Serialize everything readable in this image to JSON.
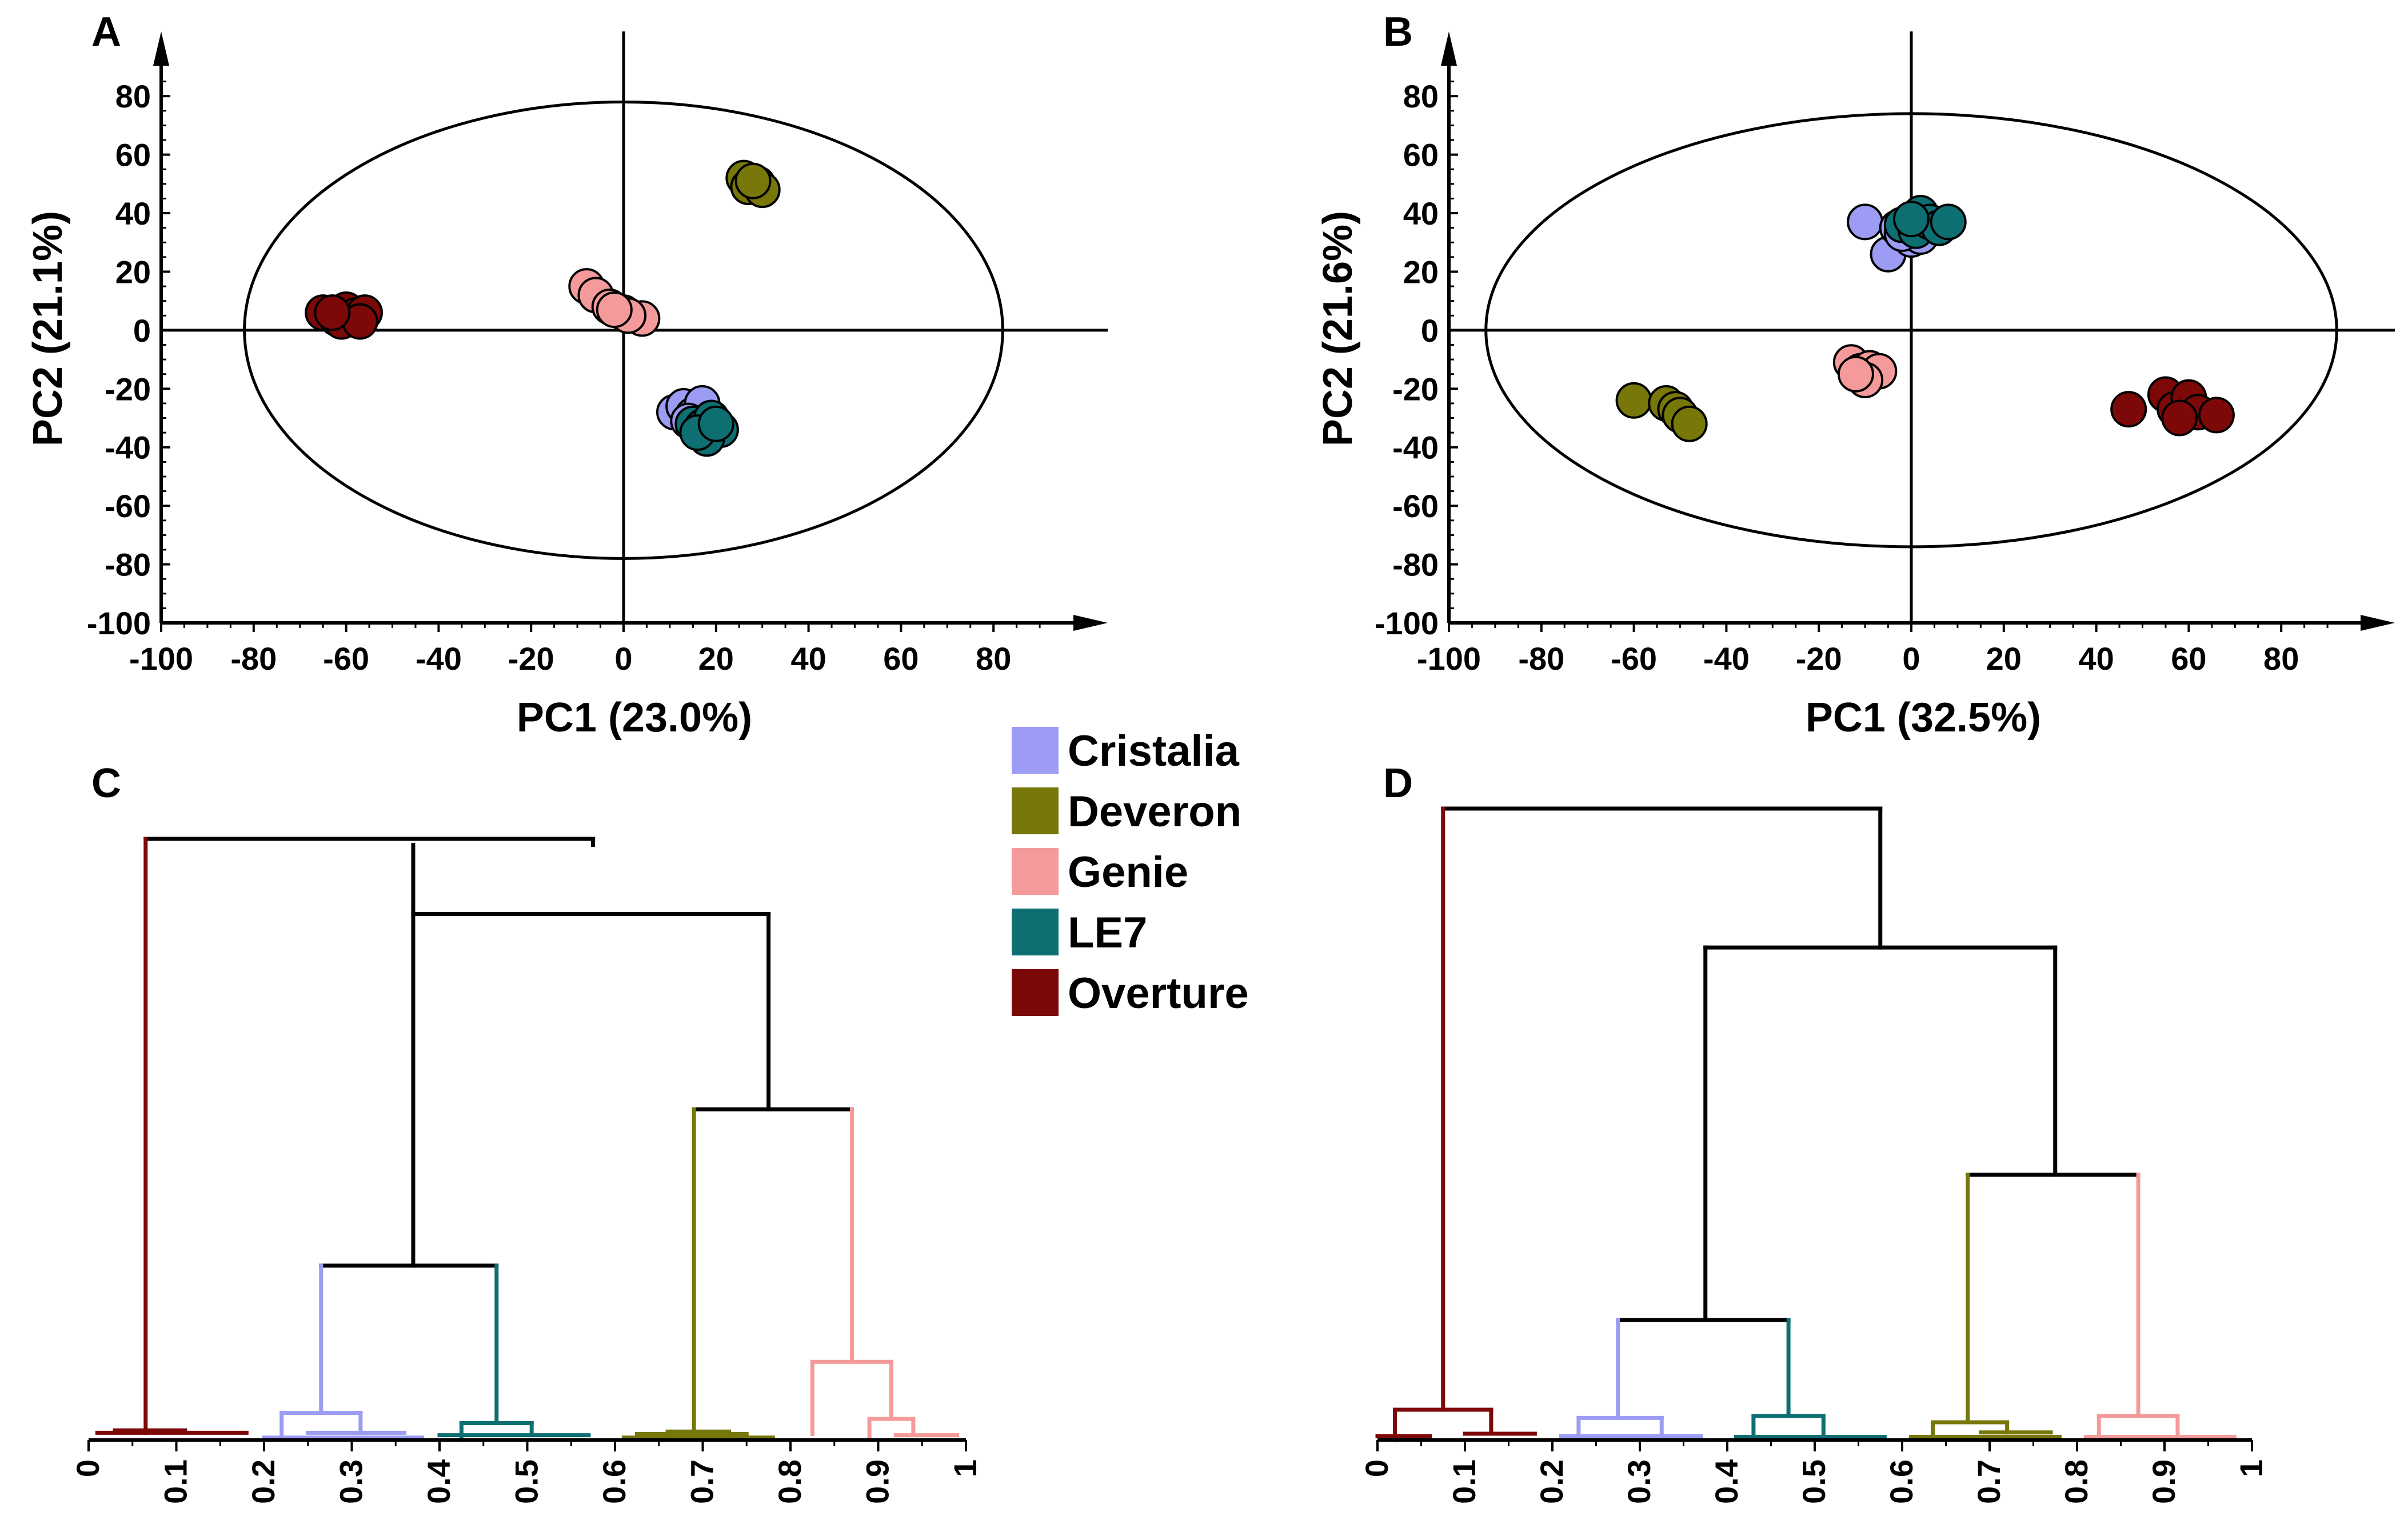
{
  "colors": {
    "Cristalia": "#9c9cf5",
    "Deveron": "#77770a",
    "Genie": "#f59a9a",
    "LE7": "#0e6f73",
    "Overture": "#7d0808",
    "black": "#000000"
  },
  "legend": {
    "items": [
      {
        "label": "Cristalia",
        "color": "#9c9cf5"
      },
      {
        "label": "Deveron",
        "color": "#77770a"
      },
      {
        "label": "Genie",
        "color": "#f59a9a"
      },
      {
        "label": "LE7",
        "color": "#0e6f73"
      },
      {
        "label": "Overture",
        "color": "#7d0808"
      }
    ]
  },
  "chart_data": [
    {
      "panel": "A",
      "type": "scatter",
      "xlabel": "PC1 (23.0%)",
      "ylabel": "PC2 (21.1%)",
      "xlim": [
        -100,
        100
      ],
      "ylim": [
        -100,
        90
      ],
      "xticks": [
        -100,
        -80,
        -60,
        -40,
        -20,
        0,
        20,
        40,
        60,
        80
      ],
      "yticks": [
        -100,
        -80,
        -60,
        -40,
        -20,
        0,
        20,
        40,
        60,
        80
      ],
      "ellipse": {
        "rx": 82,
        "ry": 78
      },
      "series": [
        {
          "name": "Overture",
          "points": [
            [
              -65,
              6
            ],
            [
              -62,
              4
            ],
            [
              -60,
              7
            ],
            [
              -58,
              5
            ],
            [
              -56,
              6
            ],
            [
              -61,
              3
            ],
            [
              -57,
              3
            ],
            [
              -63,
              6
            ]
          ]
        },
        {
          "name": "Genie",
          "points": [
            [
              -8,
              15
            ],
            [
              -6,
              12
            ],
            [
              -3,
              8
            ],
            [
              0,
              6
            ],
            [
              4,
              4
            ],
            [
              1,
              5
            ],
            [
              -2,
              7
            ]
          ]
        },
        {
          "name": "Deveron",
          "points": [
            [
              26,
              52
            ],
            [
              27,
              49
            ],
            [
              29,
              50
            ],
            [
              30,
              48
            ],
            [
              28,
              51
            ]
          ]
        },
        {
          "name": "Cristalia",
          "points": [
            [
              11,
              -28
            ],
            [
              13,
              -26
            ],
            [
              15,
              -29
            ],
            [
              17,
              -25
            ],
            [
              14,
              -31
            ]
          ]
        },
        {
          "name": "LE7",
          "points": [
            [
              15,
              -32
            ],
            [
              17,
              -33
            ],
            [
              19,
              -30
            ],
            [
              21,
              -34
            ],
            [
              18,
              -37
            ],
            [
              16,
              -35
            ],
            [
              20,
              -32
            ]
          ]
        }
      ]
    },
    {
      "panel": "B",
      "type": "scatter",
      "xlabel": "PC1 (32.5%)",
      "ylabel": "PC2 (21.6%)",
      "xlim": [
        -100,
        100
      ],
      "ylim": [
        -100,
        90
      ],
      "xticks": [
        -100,
        -80,
        -60,
        -40,
        -20,
        0,
        20,
        40,
        60,
        80
      ],
      "yticks": [
        -100,
        -80,
        -60,
        -40,
        -20,
        0,
        20,
        40,
        60,
        80
      ],
      "ellipse": {
        "rx": 92,
        "ry": 74
      },
      "series": [
        {
          "name": "Deveron",
          "points": [
            [
              -60,
              -24
            ],
            [
              -53,
              -25
            ],
            [
              -51,
              -27
            ],
            [
              -50,
              -29
            ],
            [
              -48,
              -32
            ]
          ]
        },
        {
          "name": "Genie",
          "points": [
            [
              -13,
              -11
            ],
            [
              -11,
              -14
            ],
            [
              -9,
              -13
            ],
            [
              -7,
              -14
            ],
            [
              -10,
              -17
            ],
            [
              -12,
              -15
            ]
          ]
        },
        {
          "name": "Overture",
          "points": [
            [
              47,
              -27
            ],
            [
              55,
              -22
            ],
            [
              57,
              -27
            ],
            [
              60,
              -23
            ],
            [
              62,
              -28
            ],
            [
              66,
              -29
            ],
            [
              58,
              -30
            ]
          ]
        },
        {
          "name": "Cristalia",
          "points": [
            [
              -10,
              37
            ],
            [
              -5,
              26
            ],
            [
              -3,
              35
            ],
            [
              0,
              31
            ],
            [
              2,
              32
            ],
            [
              -2,
              33
            ]
          ]
        },
        {
          "name": "LE7",
          "points": [
            [
              -2,
              36
            ],
            [
              1,
              34
            ],
            [
              2,
              40
            ],
            [
              4,
              37
            ],
            [
              6,
              35
            ],
            [
              8,
              37
            ],
            [
              0,
              38
            ]
          ]
        }
      ]
    },
    {
      "panel": "C",
      "type": "dendrogram",
      "xlim": [
        0,
        1
      ],
      "xticks": [
        "0",
        "0.1",
        "0.2",
        "0.3",
        "0.4",
        "0.5",
        "0.6",
        "0.7",
        "0.8",
        "0.9",
        "1"
      ],
      "segments": [
        {
          "color": "black",
          "x1": 0.065,
          "x2": 0.575,
          "y": 1.0
        },
        {
          "color": "black",
          "x1": 0.575,
          "x2": 0.575,
          "y1": 1.0,
          "y2": 0.99
        },
        {
          "color": "Overture",
          "x1": 0.065,
          "x2": 0.065,
          "y1": 1.0,
          "y2": 0.012
        },
        {
          "color": "black",
          "x1": 0.37,
          "x2": 0.37,
          "y1": 0.99,
          "y2": 0.875
        },
        {
          "color": "black",
          "x1": 0.37,
          "x2": 0.775,
          "y": 0.875
        },
        {
          "color": "black",
          "x1": 0.775,
          "x2": 0.775,
          "y1": 0.875,
          "y2": 0.55
        },
        {
          "color": "black",
          "x1": 0.37,
          "x2": 0.37,
          "y1": 0.875,
          "y2": 0.29
        },
        {
          "color": "black",
          "x1": 0.265,
          "x2": 0.465,
          "y": 0.29
        },
        {
          "color": "Cristalia",
          "x1": 0.265,
          "x2": 0.265,
          "y1": 0.29,
          "y2": 0.045
        },
        {
          "color": "LE7",
          "x1": 0.465,
          "x2": 0.465,
          "y1": 0.29,
          "y2": 0.028
        },
        {
          "color": "black",
          "x1": 0.69,
          "x2": 0.87,
          "y": 0.55
        },
        {
          "color": "Deveron",
          "x1": 0.69,
          "x2": 0.69,
          "y1": 0.55,
          "y2": 0.01
        },
        {
          "color": "Genie",
          "x1": 0.87,
          "x2": 0.87,
          "y1": 0.55,
          "y2": 0.13
        },
        {
          "color": "Genie",
          "x1": 0.825,
          "x2": 0.915,
          "y": 0.13
        },
        {
          "color": "Genie",
          "x1": 0.825,
          "x2": 0.825,
          "y1": 0.13,
          "y2": 0.01
        },
        {
          "color": "Genie",
          "x1": 0.915,
          "x2": 0.915,
          "y1": 0.13,
          "y2": 0.035
        },
        {
          "color": "Genie",
          "x1": 0.89,
          "x2": 0.94,
          "y": 0.035
        },
        {
          "color": "Genie",
          "x1": 0.89,
          "x2": 0.89,
          "y1": 0.035,
          "y2": 0.0
        },
        {
          "color": "Genie",
          "x1": 0.94,
          "x2": 0.94,
          "y1": 0.035,
          "y2": 0.008
        },
        {
          "color": "Genie",
          "x1": 0.92,
          "x2": 0.99,
          "y": 0.008
        },
        {
          "color": "Overture",
          "x1": 0.01,
          "x2": 0.18,
          "y": 0.012
        },
        {
          "color": "Overture",
          "x1": 0.03,
          "x2": 0.11,
          "y": 0.016
        },
        {
          "color": "Cristalia",
          "x1": 0.22,
          "x2": 0.31,
          "y": 0.045
        },
        {
          "color": "Cristalia",
          "x1": 0.22,
          "x2": 0.22,
          "y1": 0.045,
          "y2": 0.0
        },
        {
          "color": "Cristalia",
          "x1": 0.31,
          "x2": 0.31,
          "y1": 0.045,
          "y2": 0.012
        },
        {
          "color": "Cristalia",
          "x1": 0.25,
          "x2": 0.36,
          "y": 0.012
        },
        {
          "color": "Cristalia",
          "x1": 0.2,
          "x2": 0.38,
          "y": 0.004
        },
        {
          "color": "LE7",
          "x1": 0.425,
          "x2": 0.505,
          "y": 0.028
        },
        {
          "color": "LE7",
          "x1": 0.425,
          "x2": 0.425,
          "y1": 0.028,
          "y2": 0.0
        },
        {
          "color": "LE7",
          "x1": 0.505,
          "x2": 0.505,
          "y1": 0.028,
          "y2": 0.008
        },
        {
          "color": "LE7",
          "x1": 0.4,
          "x2": 0.57,
          "y": 0.008
        },
        {
          "color": "Deveron",
          "x1": 0.625,
          "x2": 0.75,
          "y": 0.01
        },
        {
          "color": "Deveron",
          "x1": 0.66,
          "x2": 0.73,
          "y": 0.014
        },
        {
          "color": "Deveron",
          "x1": 0.61,
          "x2": 0.78,
          "y": 0.004
        }
      ]
    },
    {
      "panel": "D",
      "type": "dendrogram",
      "xlim": [
        0,
        1
      ],
      "xticks": [
        "0",
        "0.1",
        "0.2",
        "0.3",
        "0.4",
        "0.5",
        "0.6",
        "0.7",
        "0.8",
        "0.9",
        "1"
      ],
      "segments": [
        {
          "color": "black",
          "x1": 0.075,
          "x2": 0.575,
          "y": 1.0
        },
        {
          "color": "Overture",
          "x1": 0.075,
          "x2": 0.075,
          "y1": 1.0,
          "y2": 0.048
        },
        {
          "color": "black",
          "x1": 0.575,
          "x2": 0.575,
          "y1": 1.0,
          "y2": 0.78
        },
        {
          "color": "black",
          "x1": 0.375,
          "x2": 0.775,
          "y": 0.78
        },
        {
          "color": "black",
          "x1": 0.375,
          "x2": 0.375,
          "y1": 0.78,
          "y2": 0.19
        },
        {
          "color": "black",
          "x1": 0.775,
          "x2": 0.775,
          "y1": 0.78,
          "y2": 0.42
        },
        {
          "color": "black",
          "x1": 0.275,
          "x2": 0.47,
          "y": 0.19
        },
        {
          "color": "Cristalia",
          "x1": 0.275,
          "x2": 0.275,
          "y1": 0.19,
          "y2": 0.035
        },
        {
          "color": "LE7",
          "x1": 0.47,
          "x2": 0.47,
          "y1": 0.19,
          "y2": 0.038
        },
        {
          "color": "black",
          "x1": 0.675,
          "x2": 0.87,
          "y": 0.42
        },
        {
          "color": "Deveron",
          "x1": 0.675,
          "x2": 0.675,
          "y1": 0.42,
          "y2": 0.028
        },
        {
          "color": "Genie",
          "x1": 0.87,
          "x2": 0.87,
          "y1": 0.42,
          "y2": 0.038
        },
        {
          "color": "Overture",
          "x1": 0.02,
          "x2": 0.13,
          "y": 0.048
        },
        {
          "color": "Overture",
          "x1": 0.02,
          "x2": 0.02,
          "y1": 0.048,
          "y2": 0.0
        },
        {
          "color": "Overture",
          "x1": 0.13,
          "x2": 0.13,
          "y1": 0.048,
          "y2": 0.01
        },
        {
          "color": "Overture",
          "x1": 0.1,
          "x2": 0.18,
          "y": 0.01
        },
        {
          "color": "Overture",
          "x1": 0.0,
          "x2": 0.06,
          "y": 0.006
        },
        {
          "color": "Cristalia",
          "x1": 0.23,
          "x2": 0.325,
          "y": 0.035
        },
        {
          "color": "Cristalia",
          "x1": 0.23,
          "x2": 0.23,
          "y1": 0.035,
          "y2": 0.006
        },
        {
          "color": "Cristalia",
          "x1": 0.325,
          "x2": 0.325,
          "y1": 0.035,
          "y2": 0.006
        },
        {
          "color": "Cristalia",
          "x1": 0.21,
          "x2": 0.37,
          "y": 0.006
        },
        {
          "color": "LE7",
          "x1": 0.43,
          "x2": 0.51,
          "y": 0.038
        },
        {
          "color": "LE7",
          "x1": 0.43,
          "x2": 0.43,
          "y1": 0.038,
          "y2": 0.005
        },
        {
          "color": "LE7",
          "x1": 0.51,
          "x2": 0.51,
          "y1": 0.038,
          "y2": 0.005
        },
        {
          "color": "LE7",
          "x1": 0.41,
          "x2": 0.58,
          "y": 0.005
        },
        {
          "color": "Deveron",
          "x1": 0.635,
          "x2": 0.72,
          "y": 0.028
        },
        {
          "color": "Deveron",
          "x1": 0.635,
          "x2": 0.635,
          "y1": 0.028,
          "y2": 0.005
        },
        {
          "color": "Deveron",
          "x1": 0.72,
          "x2": 0.72,
          "y1": 0.028,
          "y2": 0.012
        },
        {
          "color": "Deveron",
          "x1": 0.69,
          "x2": 0.77,
          "y": 0.012
        },
        {
          "color": "Deveron",
          "x1": 0.61,
          "x2": 0.78,
          "y": 0.005
        },
        {
          "color": "Genie",
          "x1": 0.825,
          "x2": 0.915,
          "y": 0.038
        },
        {
          "color": "Genie",
          "x1": 0.825,
          "x2": 0.825,
          "y1": 0.038,
          "y2": 0.005
        },
        {
          "color": "Genie",
          "x1": 0.915,
          "x2": 0.915,
          "y1": 0.038,
          "y2": 0.005
        },
        {
          "color": "Genie",
          "x1": 0.81,
          "x2": 0.98,
          "y": 0.005
        }
      ]
    }
  ]
}
